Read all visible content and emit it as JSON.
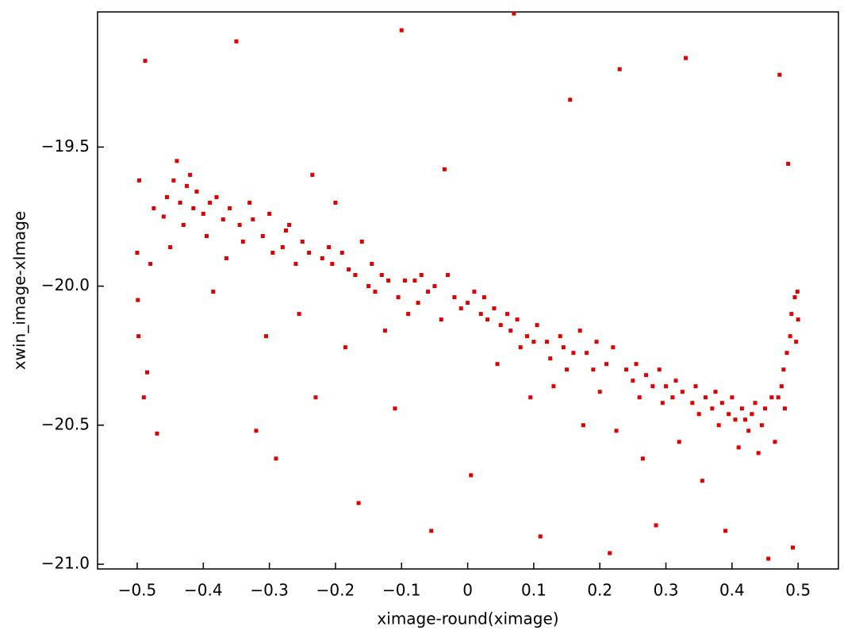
{
  "chart_data": {
    "type": "scatter",
    "color": "#e00000",
    "x_label": "ximage-round(ximage)",
    "y_label": "xwin_image-xImage",
    "xlim": [
      -0.56,
      0.561
    ],
    "ylim": [
      -21.017,
      -19.014
    ],
    "xticks": [
      {
        "value": -0.5,
        "label": "−0.5"
      },
      {
        "value": -0.4,
        "label": "−0.4"
      },
      {
        "value": -0.3,
        "label": "−0.3"
      },
      {
        "value": -0.2,
        "label": "−0.2"
      },
      {
        "value": -0.1,
        "label": "−0.1"
      },
      0,
      0.1,
      0.2,
      0.3,
      0.4,
      0.5
    ],
    "yticks": [
      {
        "value": -21.0,
        "label": "−21.0"
      },
      {
        "value": -20.5,
        "label": "−20.5"
      },
      {
        "value": -20.0,
        "label": "−20.0"
      },
      {
        "value": -19.5,
        "label": "−19.5"
      }
    ],
    "x": [
      -0.5,
      -0.499,
      -0.498,
      -0.497,
      -0.49,
      -0.488,
      -0.485,
      -0.48,
      -0.475,
      -0.47,
      -0.46,
      -0.455,
      -0.45,
      -0.445,
      -0.44,
      -0.435,
      -0.43,
      -0.425,
      -0.42,
      -0.415,
      -0.41,
      -0.4,
      -0.395,
      -0.39,
      -0.385,
      -0.38,
      -0.37,
      -0.365,
      -0.36,
      -0.35,
      -0.345,
      -0.34,
      -0.33,
      -0.325,
      -0.32,
      -0.31,
      -0.305,
      -0.3,
      -0.295,
      -0.29,
      -0.28,
      -0.275,
      -0.27,
      -0.26,
      -0.255,
      -0.25,
      -0.24,
      -0.235,
      -0.23,
      -0.22,
      -0.21,
      -0.205,
      -0.2,
      -0.19,
      -0.185,
      -0.18,
      -0.17,
      -0.165,
      -0.16,
      -0.15,
      -0.145,
      -0.14,
      -0.13,
      -0.125,
      -0.12,
      -0.11,
      -0.105,
      -0.1,
      -0.095,
      -0.09,
      -0.08,
      -0.075,
      -0.07,
      -0.06,
      -0.055,
      -0.05,
      -0.04,
      -0.035,
      -0.03,
      -0.02,
      -0.01,
      0.0,
      0.005,
      0.01,
      0.02,
      0.025,
      0.03,
      0.04,
      0.045,
      0.05,
      0.06,
      0.065,
      0.07,
      0.075,
      0.08,
      0.09,
      0.095,
      0.1,
      0.105,
      0.11,
      0.12,
      0.125,
      0.13,
      0.14,
      0.145,
      0.15,
      0.155,
      0.16,
      0.17,
      0.175,
      0.18,
      0.19,
      0.195,
      0.2,
      0.21,
      0.215,
      0.22,
      0.225,
      0.23,
      0.24,
      0.25,
      0.255,
      0.26,
      0.265,
      0.27,
      0.28,
      0.285,
      0.29,
      0.295,
      0.3,
      0.31,
      0.315,
      0.32,
      0.325,
      0.33,
      0.34,
      0.345,
      0.35,
      0.355,
      0.36,
      0.37,
      0.375,
      0.38,
      0.385,
      0.39,
      0.395,
      0.4,
      0.405,
      0.41,
      0.415,
      0.42,
      0.425,
      0.43,
      0.435,
      0.44,
      0.445,
      0.45,
      0.455,
      0.46,
      0.465,
      0.47,
      0.472,
      0.475,
      0.478,
      0.48,
      0.483,
      0.485,
      0.488,
      0.49,
      0.492,
      0.495,
      0.497,
      0.499,
      0.5
    ],
    "values": [
      -19.88,
      -20.05,
      -20.18,
      -19.62,
      -20.4,
      -19.19,
      -20.31,
      -19.92,
      -19.72,
      -20.53,
      -19.75,
      -19.68,
      -19.86,
      -19.62,
      -19.55,
      -19.7,
      -19.78,
      -19.64,
      -19.6,
      -19.72,
      -19.66,
      -19.74,
      -19.82,
      -19.7,
      -20.02,
      -19.68,
      -19.76,
      -19.9,
      -19.72,
      -19.12,
      -19.78,
      -19.84,
      -19.7,
      -19.76,
      -20.52,
      -19.82,
      -20.18,
      -19.74,
      -19.88,
      -20.62,
      -19.86,
      -19.8,
      -19.78,
      -19.92,
      -20.1,
      -19.84,
      -19.88,
      -19.6,
      -20.4,
      -19.9,
      -19.86,
      -19.92,
      -19.7,
      -19.88,
      -20.22,
      -19.94,
      -19.96,
      -20.78,
      -19.84,
      -20.0,
      -19.92,
      -20.02,
      -19.96,
      -20.16,
      -19.98,
      -20.44,
      -20.04,
      -19.08,
      -19.98,
      -20.1,
      -19.98,
      -20.06,
      -19.96,
      -20.02,
      -20.88,
      -20.0,
      -20.12,
      -19.58,
      -19.96,
      -20.04,
      -20.08,
      -20.06,
      -20.68,
      -20.02,
      -20.1,
      -20.04,
      -20.12,
      -20.08,
      -20.28,
      -20.14,
      -20.1,
      -20.16,
      -19.02,
      -20.12,
      -20.22,
      -20.18,
      -20.4,
      -20.2,
      -20.14,
      -20.9,
      -20.2,
      -20.26,
      -20.36,
      -20.18,
      -20.22,
      -20.3,
      -19.33,
      -20.24,
      -20.16,
      -20.5,
      -20.24,
      -20.3,
      -20.2,
      -20.38,
      -20.28,
      -20.96,
      -20.22,
      -20.52,
      -19.22,
      -20.3,
      -20.34,
      -20.28,
      -20.4,
      -20.62,
      -20.32,
      -20.36,
      -20.86,
      -20.3,
      -20.42,
      -20.36,
      -20.4,
      -20.34,
      -20.56,
      -20.38,
      -19.18,
      -20.42,
      -20.36,
      -20.46,
      -20.7,
      -20.4,
      -20.44,
      -20.38,
      -20.5,
      -20.42,
      -20.88,
      -20.46,
      -20.4,
      -20.48,
      -20.58,
      -20.44,
      -20.48,
      -20.52,
      -20.46,
      -20.42,
      -20.6,
      -20.5,
      -20.44,
      -20.98,
      -20.4,
      -20.56,
      -20.4,
      -19.24,
      -20.36,
      -20.3,
      -20.44,
      -20.24,
      -19.56,
      -20.18,
      -20.1,
      -20.94,
      -20.04,
      -20.2,
      -20.02,
      -20.12
    ]
  }
}
